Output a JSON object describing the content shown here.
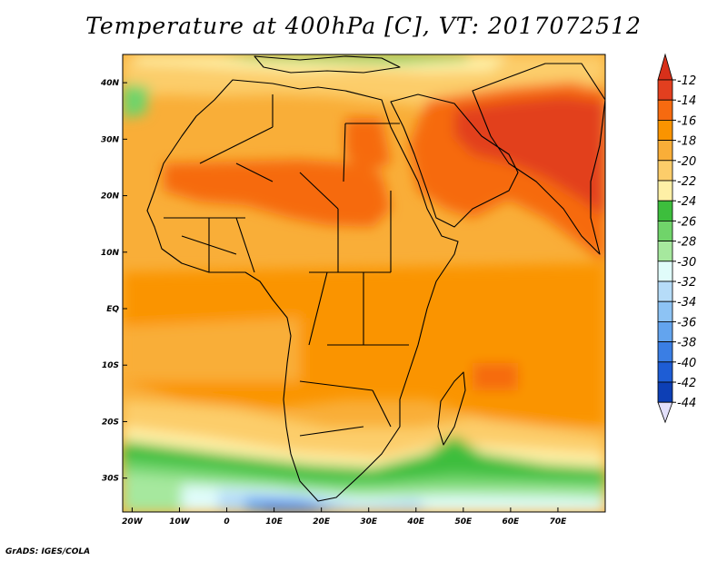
{
  "title": "Temperature at 400hPa [C], VT: 2017072512",
  "credit": "GrADS: IGES/COLA",
  "map": {
    "lon_range": [
      -22,
      80
    ],
    "lat_range": [
      -36,
      45
    ],
    "lon_ticks": [
      {
        "v": -20,
        "label": "20W"
      },
      {
        "v": -10,
        "label": "10W"
      },
      {
        "v": 0,
        "label": "0"
      },
      {
        "v": 10,
        "label": "10E"
      },
      {
        "v": 20,
        "label": "20E"
      },
      {
        "v": 30,
        "label": "30E"
      },
      {
        "v": 40,
        "label": "40E"
      },
      {
        "v": 50,
        "label": "50E"
      },
      {
        "v": 60,
        "label": "60E"
      },
      {
        "v": 70,
        "label": "70E"
      }
    ],
    "lat_ticks": [
      {
        "v": 40,
        "label": "40N"
      },
      {
        "v": 30,
        "label": "30N"
      },
      {
        "v": 20,
        "label": "20N"
      },
      {
        "v": 10,
        "label": "10N"
      },
      {
        "v": 0,
        "label": "EQ"
      },
      {
        "v": -10,
        "label": "10S"
      },
      {
        "v": -20,
        "label": "20S"
      },
      {
        "v": -30,
        "label": "30S"
      }
    ]
  },
  "colorbar": {
    "labels": [
      "-12",
      "-14",
      "-16",
      "-18",
      "-20",
      "-22",
      "-24",
      "-26",
      "-28",
      "-30",
      "-32",
      "-34",
      "-36",
      "-38",
      "-40",
      "-42",
      "-44"
    ],
    "colors": [
      "#e23f1f",
      "#f66a10",
      "#fa9400",
      "#f9ae38",
      "#fccd6a",
      "#fef0a6",
      "#3dbe3d",
      "#70d46a",
      "#a6e89e",
      "#e0fcfa",
      "#b6dcf8",
      "#8dc3f4",
      "#63a4ee",
      "#3a7ee4",
      "#1e5dd5",
      "#0d3fb5",
      "#0b1a7c"
    ],
    "top_color": "#d8301a",
    "bottom_color": "#e3e0fb"
  }
}
